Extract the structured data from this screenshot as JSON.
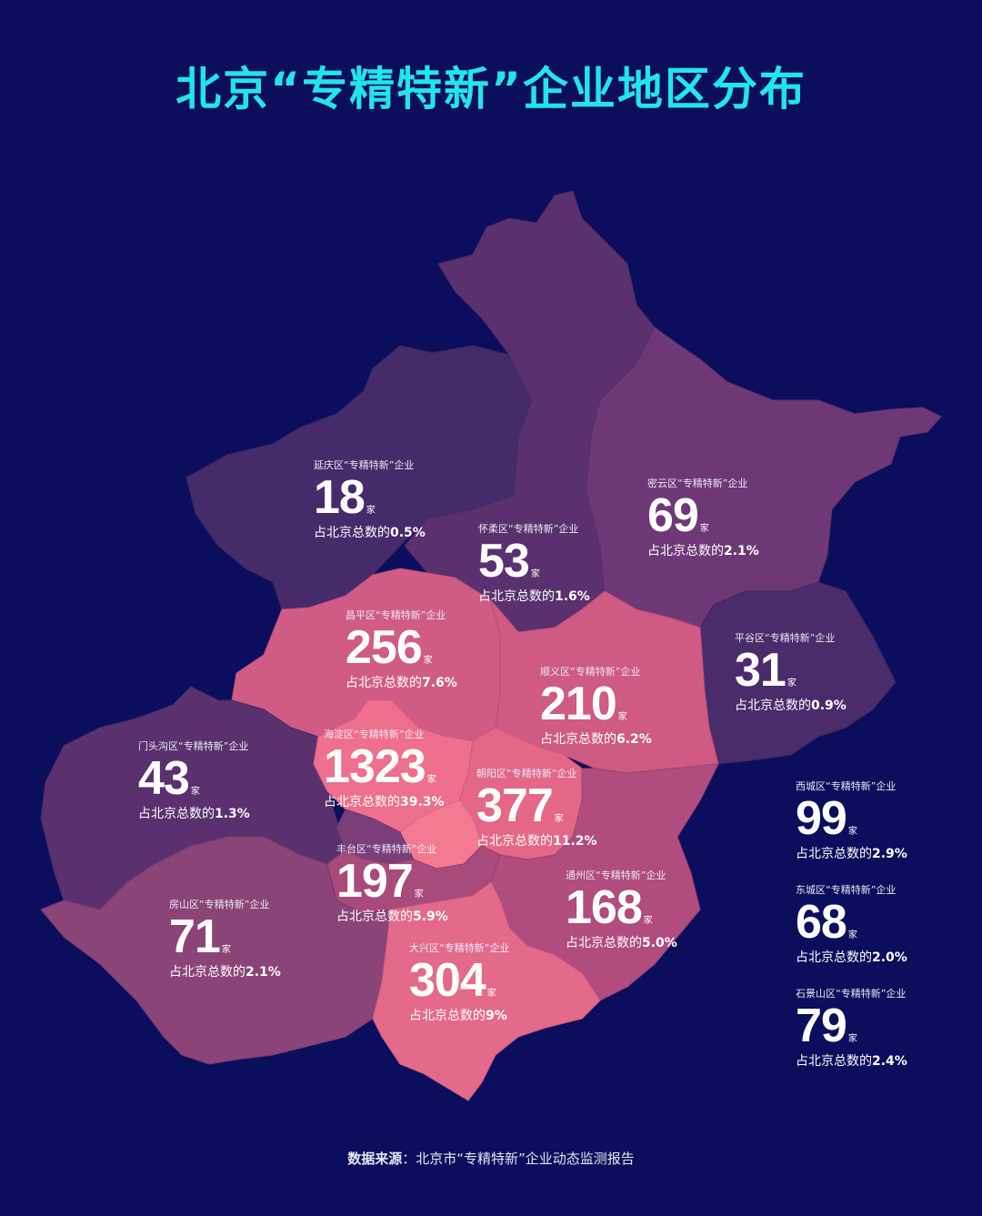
{
  "title": "北京“专精特新”企业地区分布",
  "unit": "家",
  "share_prefix": "占北京总数的",
  "districts": [
    {
      "label": "延庆区“专精特新”企业",
      "count": "18",
      "share": "0.5%"
    },
    {
      "label": "怀柔区“专精特新”企业",
      "count": "53",
      "share": "1.6%"
    },
    {
      "label": "密云区“专精特新”企业",
      "count": "69",
      "share": "2.1%"
    },
    {
      "label": "昌平区“专精特新”企业",
      "count": "256",
      "share": "7.6%"
    },
    {
      "label": "平谷区“专精特新”企业",
      "count": "31",
      "share": "0.9%"
    },
    {
      "label": "顺义区“专精特新”企业",
      "count": "210",
      "share": "6.2%"
    },
    {
      "label": "门头沟区“专精特新”企业",
      "count": "43",
      "share": "1.3%"
    },
    {
      "label": "海淀区“专精特新”企业",
      "count": "1323",
      "share": "39.3%"
    },
    {
      "label": "朝阳区“专精特新”企业",
      "count": "377",
      "share": "11.2%"
    },
    {
      "label": "丰台区“专精特新”企业",
      "count": "197",
      "share": "5.9%"
    },
    {
      "label": "通州区“专精特新”企业",
      "count": "168",
      "share": "5.0%"
    },
    {
      "label": "房山区“专精特新”企业",
      "count": "71",
      "share": "2.1%"
    },
    {
      "label": "大兴区“专精特新”企业",
      "count": "304",
      "share": "9%"
    },
    {
      "label": "西城区“专精特新”企业",
      "count": "99",
      "share": "2.9%"
    },
    {
      "label": "东城区“专精特新”企业",
      "count": "68",
      "share": "2.0%"
    },
    {
      "label": "石景山区“专精特新”企业",
      "count": "79",
      "share": "2.4%"
    }
  ],
  "source": {
    "key": "数据来源",
    "text": "：北京市“专精特新”企业动态监测报告"
  },
  "colors": {
    "background": "#0b0e5c",
    "title": "#20e6ea",
    "low": "#3f2866",
    "high": "#f47a92"
  }
}
